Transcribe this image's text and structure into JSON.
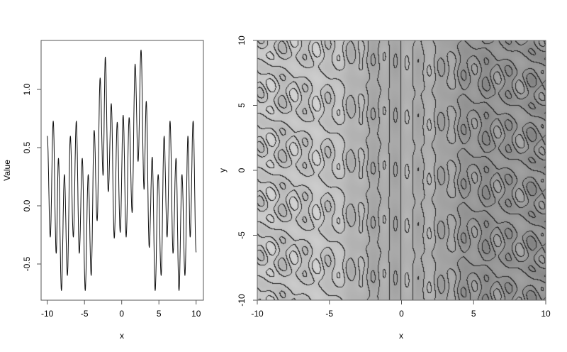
{
  "chart_data": [
    {
      "type": "line",
      "title": "",
      "xlabel": "x",
      "ylabel": "Value",
      "xlim": [
        -10,
        10
      ],
      "ylim": [
        -0.81,
        1.42
      ],
      "xticks": [
        "-10",
        "-5",
        "0",
        "5",
        "10"
      ],
      "yticks": [
        "-0.5",
        "0.0",
        "0.5",
        "1.0"
      ],
      "grid": false,
      "line_color": "#000000",
      "x": [
        -10,
        -9.6,
        -9.2,
        -8.8,
        -8.5,
        -8.1,
        -7.7,
        -7.3,
        -6.9,
        -6.5,
        -6.1,
        -5.7,
        -5.3,
        -4.9,
        -4.5,
        -4.1,
        -3.7,
        -3.3,
        -2.9,
        -2.5,
        -2.2,
        -1.8,
        -1.4,
        -1.0,
        -0.6,
        -0.2,
        0.2,
        0.6,
        1.0,
        1.4,
        1.8,
        2.2,
        2.6,
        3.0,
        3.3,
        3.7,
        4.1,
        4.5,
        4.9,
        5.3,
        5.7,
        6.1,
        6.5,
        6.9,
        7.3,
        7.7,
        8.1,
        8.5,
        8.9,
        9.2,
        9.6,
        10
      ],
      "y": [
        0.6,
        -0.27,
        0.73,
        -0.41,
        0.41,
        -0.73,
        0.27,
        -0.6,
        0.6,
        -0.27,
        0.73,
        -0.41,
        0.41,
        -0.73,
        0.27,
        -0.6,
        0.65,
        -0.13,
        1.1,
        0.26,
        1.28,
        0.12,
        0.88,
        -0.28,
        0.72,
        -0.23,
        0.78,
        -0.27,
        0.76,
        -0.06,
        1.22,
        0.38,
        1.34,
        0.14,
        0.9,
        -0.36,
        0.42,
        -0.73,
        0.27,
        -0.6,
        0.6,
        -0.27,
        0.73,
        -0.41,
        0.41,
        -0.73,
        0.27,
        -0.6,
        0.6,
        -0.27,
        0.73,
        -0.4
      ]
    },
    {
      "type": "heatmap",
      "title": "",
      "xlabel": "x",
      "ylabel": "y",
      "xlim": [
        -10,
        10
      ],
      "ylim": [
        -10,
        10
      ],
      "xticks": [
        "-10",
        "-5",
        "0",
        "5",
        "10"
      ],
      "yticks": [
        "-10",
        "-5",
        "0",
        "5",
        "10"
      ],
      "contour_levels": [
        -2,
        -1,
        0,
        1,
        2,
        3,
        4
      ],
      "colormap": "grayscale",
      "grid": false
    }
  ]
}
